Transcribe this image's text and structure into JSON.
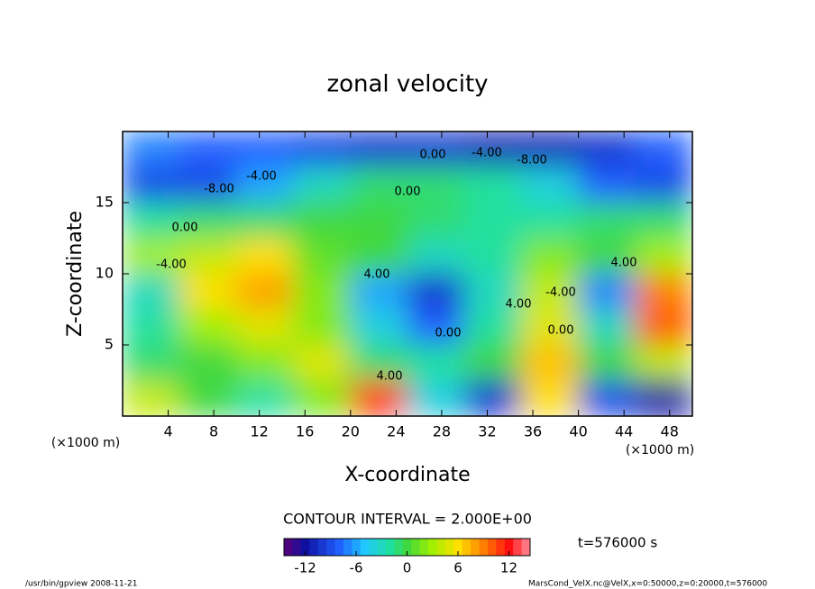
{
  "chart_data": {
    "type": "contour",
    "title": "zonal velocity",
    "x_label": "X-coordinate",
    "y_label": "Z-coordinate",
    "x_unit": "(×1000 m)",
    "y_unit": "(×1000 m)",
    "xlim": [
      0,
      50
    ],
    "xticks": [
      4,
      8,
      12,
      16,
      20,
      24,
      28,
      32,
      36,
      40,
      44,
      48
    ],
    "ylim": [
      0,
      20
    ],
    "yticks": [
      5,
      10,
      15
    ],
    "x": [
      2.5,
      7.5,
      12.5,
      17.5,
      22.5,
      27.5,
      32.5,
      37.5,
      42.5,
      47.5
    ],
    "z": [
      18.75,
      16.25,
      13.75,
      11.25,
      8.75,
      6.25,
      3.75,
      1.25
    ],
    "values": [
      [
        -7,
        -8,
        -8,
        -9,
        -10,
        -10,
        -11,
        -11,
        -10,
        -8
      ],
      [
        -9,
        -9,
        -6,
        -3,
        -1,
        -1,
        -2,
        -4,
        -8,
        -9
      ],
      [
        -2,
        -1,
        -1,
        0,
        0,
        -1,
        -2,
        -2,
        -1,
        -1
      ],
      [
        3,
        4,
        6,
        1,
        0,
        -3,
        -2,
        2,
        0,
        3
      ],
      [
        -3,
        6,
        8,
        2,
        -6,
        -10,
        -3,
        4,
        -7,
        9
      ],
      [
        -2,
        3,
        5,
        2,
        -4,
        -8,
        -2,
        5,
        -3,
        10
      ],
      [
        -1,
        0,
        2,
        5,
        -1,
        -2,
        0,
        7,
        0,
        4
      ],
      [
        4,
        0,
        -2,
        2,
        11,
        -4,
        -10,
        6,
        -9,
        -12
      ]
    ],
    "contour_labels": [
      "-8.00",
      "-4.00",
      "0.00",
      "0.00",
      "-4.00",
      "4.00",
      "-4.00",
      "0.00",
      "-8.00",
      "4.00",
      "0.00",
      "-4.00",
      "0.00",
      "4.00",
      "4.00"
    ],
    "contour_interval": "CONTOUR INTERVAL = 2.000E+00",
    "colorbar_lim": [
      -14.5,
      14.5
    ],
    "colorbar_ticks": [
      -12,
      -6,
      0,
      6,
      12
    ],
    "time_label": "t=576000 s",
    "footer_left": "/usr/bin/gpview   2008-11-21",
    "footer_right": "MarsCond_VelX.nc@VelX,x=0:50000,z=0:20000,t=576000"
  }
}
